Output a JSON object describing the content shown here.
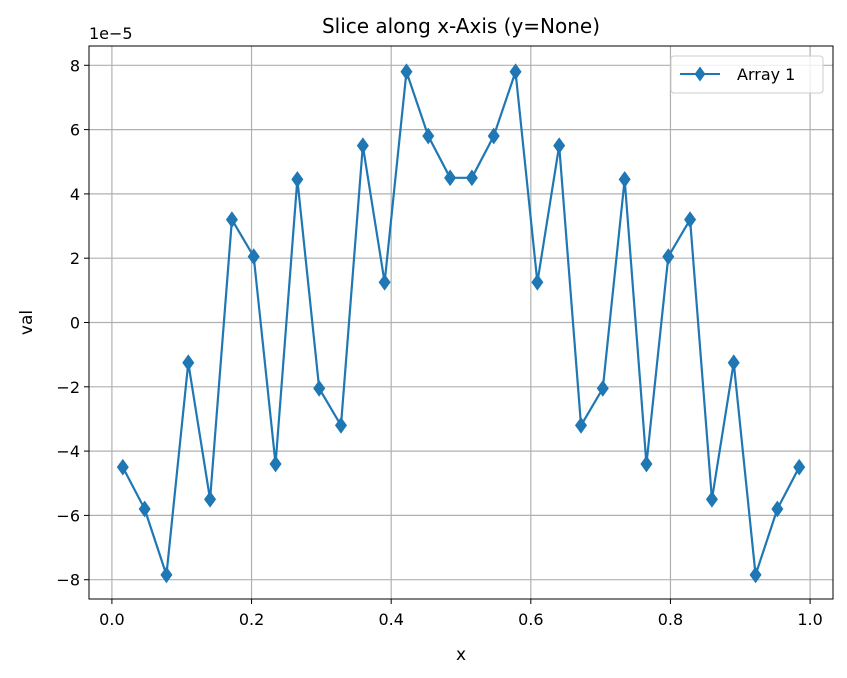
{
  "chart_data": {
    "type": "line",
    "title": "Slice along x-Axis (y=None)",
    "xlabel": "x",
    "ylabel": "val",
    "y_offset_label": "1e−5",
    "y_scale_factor": 1e-05,
    "xlim": [
      -0.0328,
      1.0328
    ],
    "ylim": [
      -8.6,
      8.6
    ],
    "x_ticks": [
      0.0,
      0.2,
      0.4,
      0.6,
      0.8,
      1.0
    ],
    "x_tick_labels": [
      "0.0",
      "0.2",
      "0.4",
      "0.6",
      "0.8",
      "1.0"
    ],
    "y_ticks": [
      -8,
      -6,
      -4,
      -2,
      0,
      2,
      4,
      6,
      8
    ],
    "y_tick_labels": [
      "−8",
      "−6",
      "−4",
      "−2",
      "0",
      "2",
      "4",
      "6",
      "8"
    ],
    "grid": true,
    "legend_position": "top-right",
    "series": [
      {
        "name": "Array 1",
        "color": "#1f77b4",
        "marker": "thin-diamond",
        "x": [
          0.0156,
          0.0469,
          0.0781,
          0.1094,
          0.1406,
          0.1719,
          0.2031,
          0.2344,
          0.2656,
          0.2969,
          0.3281,
          0.3594,
          0.3906,
          0.4219,
          0.4531,
          0.4844,
          0.5156,
          0.5469,
          0.5781,
          0.6094,
          0.6406,
          0.6719,
          0.7031,
          0.7344,
          0.7656,
          0.7969,
          0.8281,
          0.8594,
          0.8906,
          0.9219,
          0.9531,
          0.9844
        ],
        "y": [
          -4.5,
          -5.8,
          -7.85,
          -1.25,
          -5.5,
          3.2,
          2.05,
          -4.4,
          4.45,
          -2.05,
          -3.2,
          5.5,
          1.25,
          7.8,
          5.8,
          4.5,
          4.5,
          5.8,
          7.8,
          1.25,
          5.5,
          -3.2,
          -2.05,
          4.45,
          -4.4,
          2.05,
          3.2,
          -5.5,
          -1.25,
          -7.85,
          -5.8,
          -4.5
        ]
      }
    ]
  }
}
